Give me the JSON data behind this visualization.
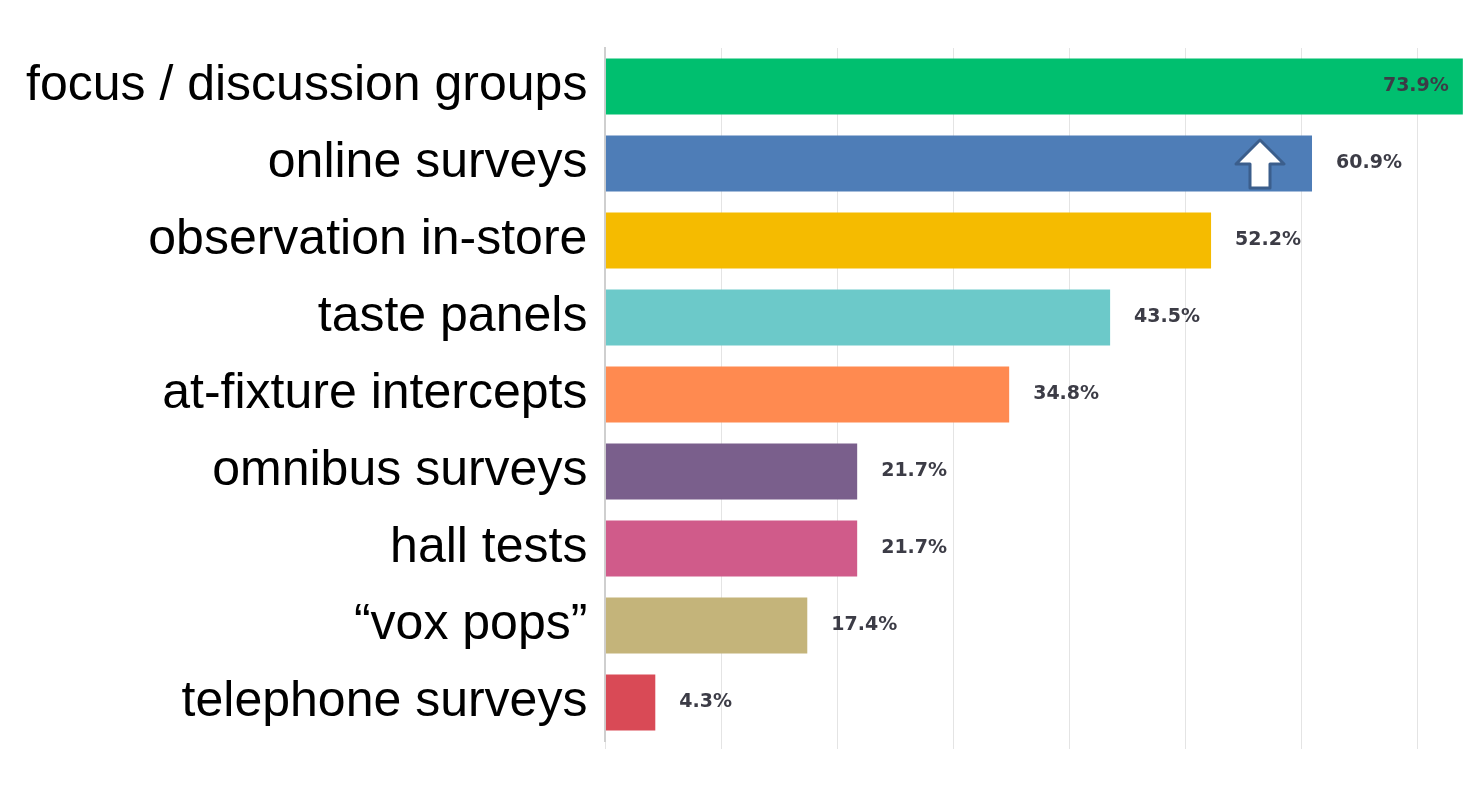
{
  "chart_data": {
    "type": "bar",
    "orientation": "horizontal",
    "categories": [
      "focus / discussion groups",
      "online surveys",
      "observation in-store",
      "taste panels",
      "at-fixture intercepts",
      "omnibus surveys",
      "hall tests",
      "“vox pops”",
      "telephone surveys"
    ],
    "values": [
      73.9,
      60.9,
      52.2,
      43.5,
      34.8,
      21.7,
      21.7,
      17.4,
      4.3
    ],
    "colors": [
      "#00bf6f",
      "#4e7db7",
      "#f5bb00",
      "#6cc9c9",
      "#ff8a50",
      "#7a5f8c",
      "#d05b8a",
      "#c4b47a",
      "#d94a56"
    ],
    "value_labels": [
      "73.9%",
      "60.9%",
      "52.2%",
      "43.5%",
      "34.8%",
      "21.7%",
      "21.7%",
      "17.4%",
      "4.3%"
    ],
    "xlim": [
      0,
      74
    ],
    "xticks": [
      {
        "value": 0,
        "label": null
      },
      {
        "value": 10,
        "label": null
      },
      {
        "value": 20,
        "label": null
      },
      {
        "value": 30,
        "label": null
      },
      {
        "value": 40,
        "label": null
      },
      {
        "value": 50,
        "label": null
      },
      {
        "value": 60,
        "label": null
      },
      {
        "value": 70,
        "label": null
      }
    ],
    "grid": "x",
    "tick_labels": "y",
    "legend": false
  }
}
